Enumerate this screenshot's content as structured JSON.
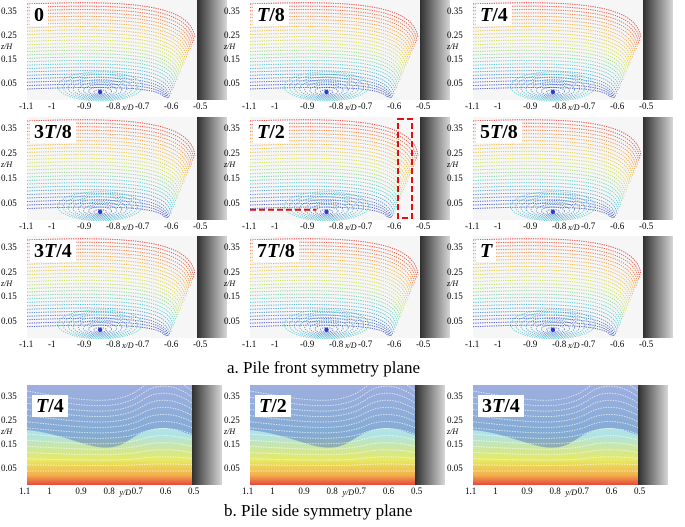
{
  "figure": {
    "caption_a": "a. Pile front symmetry plane",
    "caption_b": "b. Pile side symmetry plane",
    "front_panels": [
      {
        "label": "0"
      },
      {
        "label": "T/8"
      },
      {
        "label": "T/4"
      },
      {
        "label": "3T/8"
      },
      {
        "label": "T/2"
      },
      {
        "label": "5T/8"
      },
      {
        "label": "3T/4"
      },
      {
        "label": "7T/8"
      },
      {
        "label": "T"
      }
    ],
    "side_panels": [
      {
        "label": "T/4"
      },
      {
        "label": "T/2"
      },
      {
        "label": "3T/4"
      }
    ],
    "front_axes": {
      "ylabel": "z/H",
      "xlabel": "x/D",
      "yticks": [
        "0.35",
        "0.25",
        "0.15",
        "0.05"
      ],
      "xticks": [
        "-1.1",
        "-1",
        "-0.9",
        "-0.8",
        "-0.7",
        "-0.6",
        "-0.5"
      ]
    },
    "side_axes": {
      "ylabel": "z/H",
      "xlabel": "y/D",
      "yticks": [
        "0.35",
        "0.25",
        "0.15",
        "0.05"
      ],
      "xticks": [
        "1.1",
        "1",
        "0.9",
        "0.8",
        "0.7",
        "0.6",
        "0.5"
      ]
    },
    "colors": {
      "high": "#e8241c",
      "mid_high": "#f6a21a",
      "mid": "#c8e02a",
      "mid_low": "#34c6cf",
      "low": "#2a3cc8",
      "pile_dark": "#3a3a3a",
      "pile_light": "#cfcfcf",
      "highlight": "#e01010"
    }
  }
}
